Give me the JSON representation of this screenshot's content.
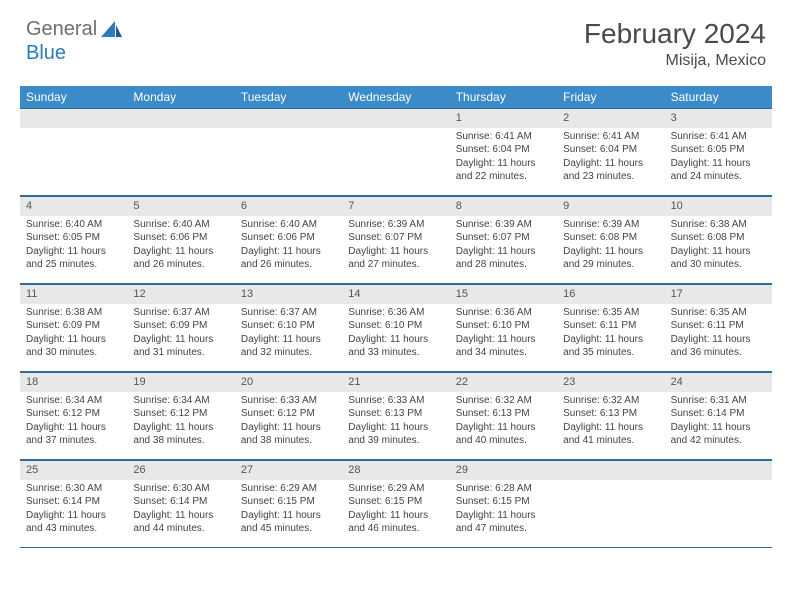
{
  "logo": {
    "text1": "General",
    "text2": "Blue"
  },
  "title": "February 2024",
  "subtitle": "Misija, Mexico",
  "colors": {
    "header_bg": "#3b8bc9",
    "header_text": "#ffffff",
    "row_border": "#2f6a9c",
    "daynum_bg": "#e8e8e8",
    "logo_gray": "#6f6f6f",
    "logo_blue": "#2b7bbf"
  },
  "day_names": [
    "Sunday",
    "Monday",
    "Tuesday",
    "Wednesday",
    "Thursday",
    "Friday",
    "Saturday"
  ],
  "weeks": [
    [
      null,
      null,
      null,
      null,
      {
        "n": "1",
        "sr": "6:41 AM",
        "ss": "6:04 PM",
        "dl": "11 hours and 22 minutes."
      },
      {
        "n": "2",
        "sr": "6:41 AM",
        "ss": "6:04 PM",
        "dl": "11 hours and 23 minutes."
      },
      {
        "n": "3",
        "sr": "6:41 AM",
        "ss": "6:05 PM",
        "dl": "11 hours and 24 minutes."
      }
    ],
    [
      {
        "n": "4",
        "sr": "6:40 AM",
        "ss": "6:05 PM",
        "dl": "11 hours and 25 minutes."
      },
      {
        "n": "5",
        "sr": "6:40 AM",
        "ss": "6:06 PM",
        "dl": "11 hours and 26 minutes."
      },
      {
        "n": "6",
        "sr": "6:40 AM",
        "ss": "6:06 PM",
        "dl": "11 hours and 26 minutes."
      },
      {
        "n": "7",
        "sr": "6:39 AM",
        "ss": "6:07 PM",
        "dl": "11 hours and 27 minutes."
      },
      {
        "n": "8",
        "sr": "6:39 AM",
        "ss": "6:07 PM",
        "dl": "11 hours and 28 minutes."
      },
      {
        "n": "9",
        "sr": "6:39 AM",
        "ss": "6:08 PM",
        "dl": "11 hours and 29 minutes."
      },
      {
        "n": "10",
        "sr": "6:38 AM",
        "ss": "6:08 PM",
        "dl": "11 hours and 30 minutes."
      }
    ],
    [
      {
        "n": "11",
        "sr": "6:38 AM",
        "ss": "6:09 PM",
        "dl": "11 hours and 30 minutes."
      },
      {
        "n": "12",
        "sr": "6:37 AM",
        "ss": "6:09 PM",
        "dl": "11 hours and 31 minutes."
      },
      {
        "n": "13",
        "sr": "6:37 AM",
        "ss": "6:10 PM",
        "dl": "11 hours and 32 minutes."
      },
      {
        "n": "14",
        "sr": "6:36 AM",
        "ss": "6:10 PM",
        "dl": "11 hours and 33 minutes."
      },
      {
        "n": "15",
        "sr": "6:36 AM",
        "ss": "6:10 PM",
        "dl": "11 hours and 34 minutes."
      },
      {
        "n": "16",
        "sr": "6:35 AM",
        "ss": "6:11 PM",
        "dl": "11 hours and 35 minutes."
      },
      {
        "n": "17",
        "sr": "6:35 AM",
        "ss": "6:11 PM",
        "dl": "11 hours and 36 minutes."
      }
    ],
    [
      {
        "n": "18",
        "sr": "6:34 AM",
        "ss": "6:12 PM",
        "dl": "11 hours and 37 minutes."
      },
      {
        "n": "19",
        "sr": "6:34 AM",
        "ss": "6:12 PM",
        "dl": "11 hours and 38 minutes."
      },
      {
        "n": "20",
        "sr": "6:33 AM",
        "ss": "6:12 PM",
        "dl": "11 hours and 38 minutes."
      },
      {
        "n": "21",
        "sr": "6:33 AM",
        "ss": "6:13 PM",
        "dl": "11 hours and 39 minutes."
      },
      {
        "n": "22",
        "sr": "6:32 AM",
        "ss": "6:13 PM",
        "dl": "11 hours and 40 minutes."
      },
      {
        "n": "23",
        "sr": "6:32 AM",
        "ss": "6:13 PM",
        "dl": "11 hours and 41 minutes."
      },
      {
        "n": "24",
        "sr": "6:31 AM",
        "ss": "6:14 PM",
        "dl": "11 hours and 42 minutes."
      }
    ],
    [
      {
        "n": "25",
        "sr": "6:30 AM",
        "ss": "6:14 PM",
        "dl": "11 hours and 43 minutes."
      },
      {
        "n": "26",
        "sr": "6:30 AM",
        "ss": "6:14 PM",
        "dl": "11 hours and 44 minutes."
      },
      {
        "n": "27",
        "sr": "6:29 AM",
        "ss": "6:15 PM",
        "dl": "11 hours and 45 minutes."
      },
      {
        "n": "28",
        "sr": "6:29 AM",
        "ss": "6:15 PM",
        "dl": "11 hours and 46 minutes."
      },
      {
        "n": "29",
        "sr": "6:28 AM",
        "ss": "6:15 PM",
        "dl": "11 hours and 47 minutes."
      },
      null,
      null
    ]
  ],
  "labels": {
    "sunrise": "Sunrise: ",
    "sunset": "Sunset: ",
    "daylight": "Daylight: "
  }
}
